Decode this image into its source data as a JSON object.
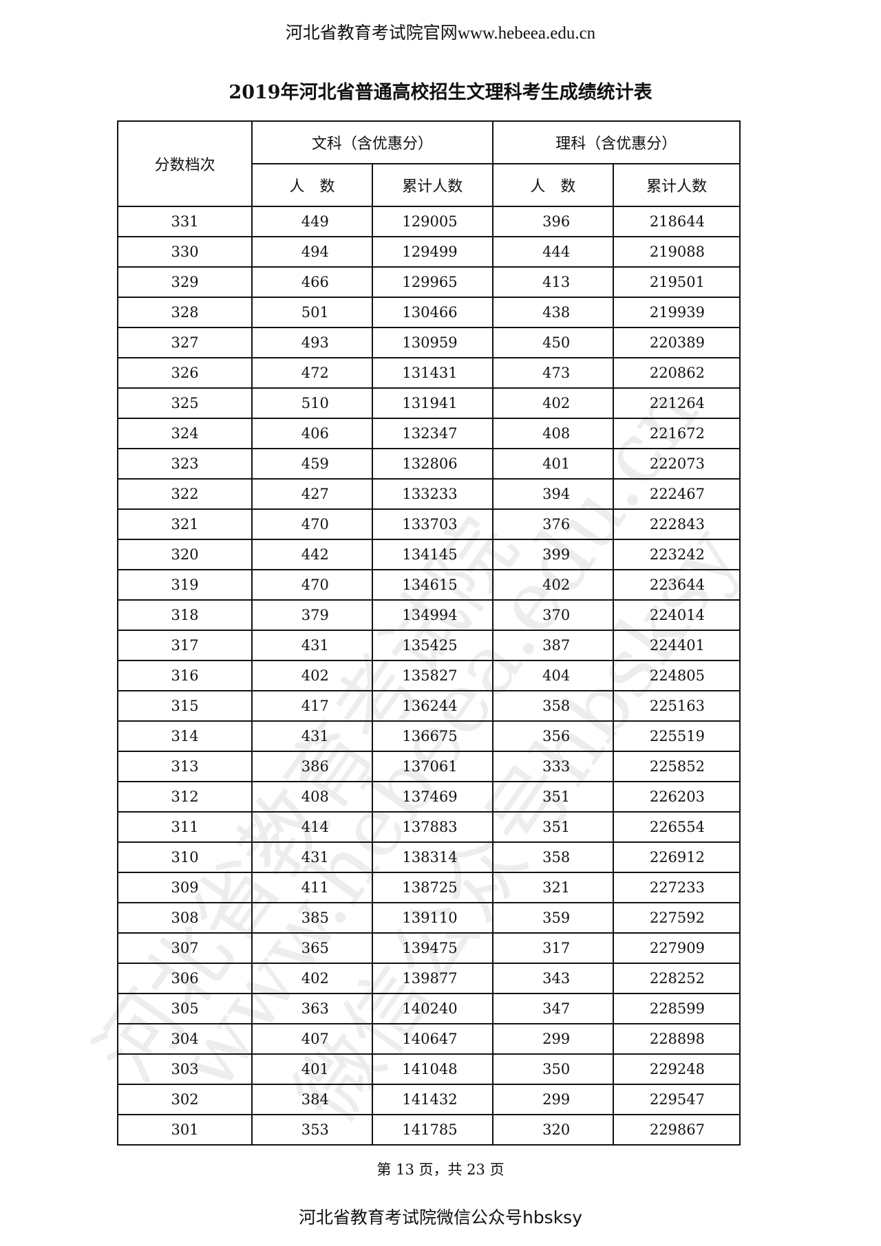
{
  "page_header": {
    "text": "河北省教育考试院官网",
    "url": "www.hebeea.edu.cn"
  },
  "title": "2019年河北省普通高校招生文理科考生成绩统计表",
  "table": {
    "col_score": "分数档次",
    "group_wen": "文科（含优惠分）",
    "group_li": "理科（含优惠分）",
    "sub_count": "人　数",
    "sub_cum": "累计人数",
    "rows": [
      [
        "331",
        "449",
        "129005",
        "396",
        "218644"
      ],
      [
        "330",
        "494",
        "129499",
        "444",
        "219088"
      ],
      [
        "329",
        "466",
        "129965",
        "413",
        "219501"
      ],
      [
        "328",
        "501",
        "130466",
        "438",
        "219939"
      ],
      [
        "327",
        "493",
        "130959",
        "450",
        "220389"
      ],
      [
        "326",
        "472",
        "131431",
        "473",
        "220862"
      ],
      [
        "325",
        "510",
        "131941",
        "402",
        "221264"
      ],
      [
        "324",
        "406",
        "132347",
        "408",
        "221672"
      ],
      [
        "323",
        "459",
        "132806",
        "401",
        "222073"
      ],
      [
        "322",
        "427",
        "133233",
        "394",
        "222467"
      ],
      [
        "321",
        "470",
        "133703",
        "376",
        "222843"
      ],
      [
        "320",
        "442",
        "134145",
        "399",
        "223242"
      ],
      [
        "319",
        "470",
        "134615",
        "402",
        "223644"
      ],
      [
        "318",
        "379",
        "134994",
        "370",
        "224014"
      ],
      [
        "317",
        "431",
        "135425",
        "387",
        "224401"
      ],
      [
        "316",
        "402",
        "135827",
        "404",
        "224805"
      ],
      [
        "315",
        "417",
        "136244",
        "358",
        "225163"
      ],
      [
        "314",
        "431",
        "136675",
        "356",
        "225519"
      ],
      [
        "313",
        "386",
        "137061",
        "333",
        "225852"
      ],
      [
        "312",
        "408",
        "137469",
        "351",
        "226203"
      ],
      [
        "311",
        "414",
        "137883",
        "351",
        "226554"
      ],
      [
        "310",
        "431",
        "138314",
        "358",
        "226912"
      ],
      [
        "309",
        "411",
        "138725",
        "321",
        "227233"
      ],
      [
        "308",
        "385",
        "139110",
        "359",
        "227592"
      ],
      [
        "307",
        "365",
        "139475",
        "317",
        "227909"
      ],
      [
        "306",
        "402",
        "139877",
        "343",
        "228252"
      ],
      [
        "305",
        "363",
        "140240",
        "347",
        "228599"
      ],
      [
        "304",
        "407",
        "140647",
        "299",
        "228898"
      ],
      [
        "303",
        "401",
        "141048",
        "350",
        "229248"
      ],
      [
        "302",
        "384",
        "141432",
        "299",
        "229547"
      ],
      [
        "301",
        "353",
        "141785",
        "320",
        "229867"
      ]
    ]
  },
  "page_number": "第 13 页，共 23 页",
  "page_footer": "河北省教育考试院微信公众号hbsksy",
  "watermark": [
    "河北省教育考试院",
    "www.hebeea.edu.cn",
    "微信公众号hbsksy"
  ]
}
